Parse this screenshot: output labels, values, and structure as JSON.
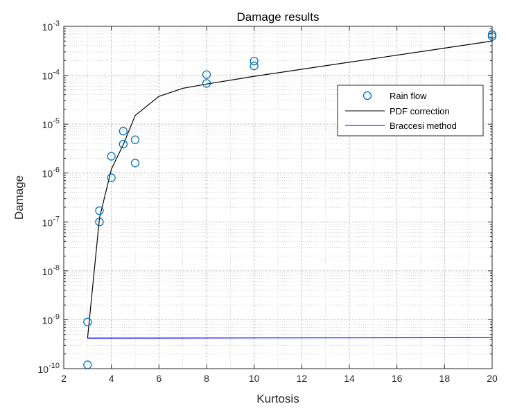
{
  "chart_data": {
    "type": "scatter",
    "title": "Damage results",
    "xlabel": "Kurtosis",
    "ylabel": "Damage",
    "xlim": [
      2,
      20
    ],
    "ylim": [
      1e-10,
      0.001
    ],
    "y_scale": "log",
    "grid": true,
    "minor_grid": true,
    "legend_position": "top-right",
    "x_ticks": [
      2,
      4,
      6,
      8,
      10,
      12,
      14,
      16,
      18,
      20
    ],
    "x_tick_labels": [
      "2",
      "4",
      "6",
      "8",
      "10",
      "12",
      "14",
      "16",
      "18",
      "20"
    ],
    "y_ticks": [
      {
        "value": 1e-10,
        "base": "10",
        "exp": "-10"
      },
      {
        "value": 1e-09,
        "base": "10",
        "exp": "-9"
      },
      {
        "value": 1e-08,
        "base": "10",
        "exp": "-8"
      },
      {
        "value": 1e-07,
        "base": "10",
        "exp": "-7"
      },
      {
        "value": 1e-06,
        "base": "10",
        "exp": "-6"
      },
      {
        "value": 1e-05,
        "base": "10",
        "exp": "-5"
      },
      {
        "value": 0.0001,
        "base": "10",
        "exp": "-4"
      },
      {
        "value": 0.001,
        "base": "10",
        "exp": "-3"
      }
    ],
    "series": [
      {
        "name": "Rain flow",
        "kind": "scatter",
        "marker": "circle",
        "color": "#0072BD",
        "x": [
          3,
          3,
          3.5,
          3.5,
          4,
          4,
          4.5,
          4.5,
          5,
          5,
          8,
          8,
          10,
          10,
          20,
          20
        ],
        "y": [
          9e-10,
          1.2e-10,
          1.7e-07,
          1e-07,
          2.2e-06,
          8e-07,
          7.2e-06,
          3.9e-06,
          4.8e-06,
          1.6e-06,
          0.000103,
          6.8e-05,
          0.000195,
          0.000155,
          0.00068,
          0.00062
        ]
      },
      {
        "name": "PDF correction",
        "kind": "line",
        "color": "#000000",
        "x": [
          3,
          3.5,
          4,
          4.5,
          5,
          6,
          7,
          8,
          10,
          20
        ],
        "y": [
          4.2e-10,
          1.2e-07,
          1.2e-06,
          3.8e-06,
          1.5e-05,
          3.7e-05,
          5.4e-05,
          6.6e-05,
          9.5e-05,
          0.0005
        ]
      },
      {
        "name": "Braccesi method",
        "kind": "line",
        "color": "#0000FF",
        "x": [
          3,
          20
        ],
        "y": [
          4.2e-10,
          4.3e-10
        ]
      }
    ]
  }
}
